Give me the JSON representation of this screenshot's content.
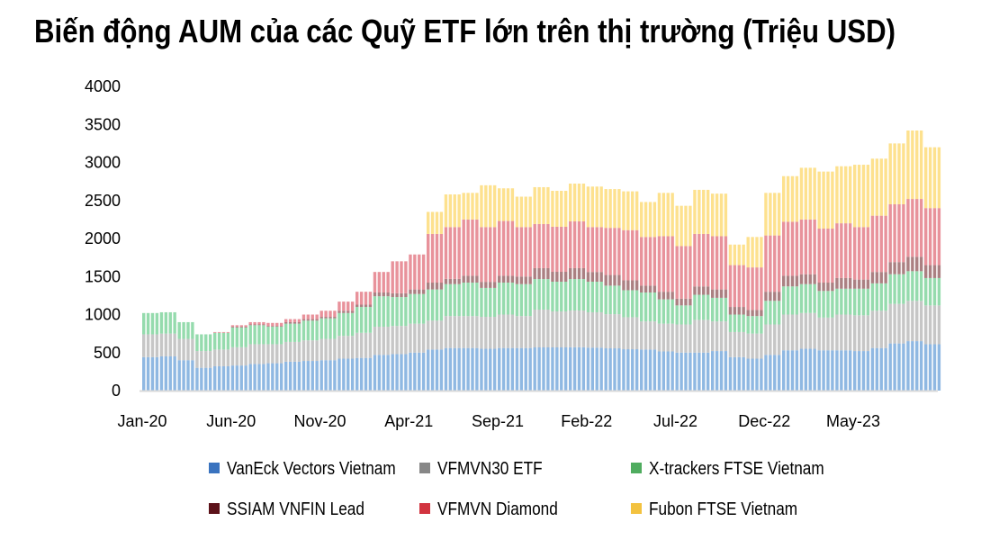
{
  "chart_data": {
    "type": "bar",
    "stacked": true,
    "title": "Biến động AUM của các Quỹ ETF lớn trên thị trường (Triệu USD)",
    "xlabel": "",
    "ylabel": "",
    "ylim": [
      0,
      4000
    ],
    "yticks": [
      "0",
      "500",
      "1000",
      "1500",
      "2000",
      "2500",
      "3000",
      "3500",
      "4000"
    ],
    "ytick_values": [
      0,
      500,
      1000,
      1500,
      2000,
      2500,
      3000,
      3500,
      4000
    ],
    "xtick_labels": [
      "Jan-20",
      "Jun-20",
      "Nov-20",
      "Apr-21",
      "Sep-21",
      "Feb-22",
      "Jul-22",
      "Dec-22",
      "May-23"
    ],
    "xtick_index": [
      0,
      5,
      10,
      15,
      20,
      25,
      30,
      35,
      40
    ],
    "categories": [
      "Jan-20",
      "Feb-20",
      "Mar-20",
      "Apr-20",
      "May-20",
      "Jun-20",
      "Jul-20",
      "Aug-20",
      "Sep-20",
      "Oct-20",
      "Nov-20",
      "Dec-20",
      "Jan-21",
      "Feb-21",
      "Mar-21",
      "Apr-21",
      "May-21",
      "Jun-21",
      "Jul-21",
      "Aug-21",
      "Sep-21",
      "Oct-21",
      "Nov-21",
      "Dec-21",
      "Jan-22",
      "Feb-22",
      "Mar-22",
      "Apr-22",
      "May-22",
      "Jun-22",
      "Jul-22",
      "Aug-22",
      "Sep-22",
      "Oct-22",
      "Nov-22",
      "Dec-22",
      "Jan-23",
      "Feb-23",
      "Mar-23",
      "Apr-23",
      "May-23",
      "Jun-23",
      "Jul-23",
      "Aug-23",
      "Sep-23"
    ],
    "legend_position": "bottom",
    "grid": false,
    "series": [
      {
        "name": "VanEck Vectors Vietnam",
        "color": "#3a73bf",
        "fill": "#8fb8e2",
        "values": [
          440,
          450,
          400,
          300,
          320,
          330,
          350,
          360,
          380,
          390,
          400,
          420,
          430,
          470,
          480,
          500,
          540,
          560,
          560,
          550,
          560,
          560,
          568,
          568,
          570,
          565,
          556,
          544,
          540,
          515,
          500,
          500,
          520,
          440,
          420,
          470,
          530,
          550,
          530,
          530,
          520,
          560,
          620,
          650,
          610
        ]
      },
      {
        "name": "VFMVN30 ETF",
        "color": "#878787",
        "fill": "#c6c6c6",
        "values": [
          300,
          300,
          280,
          220,
          220,
          240,
          260,
          250,
          260,
          270,
          280,
          300,
          330,
          370,
          370,
          380,
          380,
          420,
          420,
          420,
          440,
          420,
          497,
          473,
          483,
          465,
          449,
          421,
          370,
          365,
          370,
          430,
          390,
          330,
          330,
          400,
          470,
          470,
          430,
          470,
          470,
          490,
          520,
          530,
          510
        ]
      },
      {
        "name": "X-trackers FTSE Vietnam",
        "color": "#4fac5f",
        "fill": "#95dbad",
        "values": [
          280,
          280,
          220,
          220,
          220,
          260,
          250,
          230,
          240,
          260,
          270,
          300,
          340,
          400,
          380,
          390,
          410,
          420,
          440,
          380,
          420,
          420,
          402,
          391,
          414,
          402,
          375,
          355,
          380,
          320,
          250,
          330,
          310,
          230,
          230,
          310,
          370,
          380,
          350,
          340,
          350,
          360,
          390,
          390,
          360
        ]
      },
      {
        "name": "SSIAM VNFIN Lead",
        "color": "#5c1219",
        "fill": "#ab8082",
        "values": [
          0,
          0,
          0,
          0,
          0,
          10,
          10,
          10,
          20,
          20,
          20,
          30,
          30,
          50,
          50,
          60,
          90,
          70,
          90,
          80,
          90,
          100,
          143,
          130,
          143,
          128,
          140,
          130,
          90,
          100,
          90,
          110,
          110,
          100,
          80,
          120,
          140,
          130,
          110,
          140,
          120,
          150,
          160,
          190,
          170
        ]
      },
      {
        "name": "VFMVN Diamond",
        "color": "#d2343f",
        "fill": "#e8929b",
        "values": [
          0,
          0,
          0,
          0,
          10,
          20,
          30,
          40,
          40,
          60,
          80,
          120,
          170,
          270,
          420,
          460,
          640,
          680,
          740,
          720,
          720,
          650,
          580,
          592,
          615,
          590,
          620,
          660,
          640,
          730,
          690,
          690,
          700,
          550,
          560,
          740,
          710,
          720,
          710,
          720,
          690,
          740,
          760,
          760,
          750
        ]
      },
      {
        "name": "Fubon FTSE Vietnam",
        "color": "#f3c23f",
        "fill": "#fde18e",
        "values": [
          0,
          0,
          0,
          0,
          0,
          0,
          0,
          0,
          0,
          0,
          0,
          0,
          0,
          0,
          0,
          0,
          290,
          430,
          350,
          550,
          430,
          400,
          485,
          473,
          497,
          533,
          510,
          510,
          460,
          570,
          530,
          580,
          560,
          270,
          400,
          560,
          600,
          680,
          750,
          750,
          820,
          750,
          800,
          900,
          800
        ]
      }
    ]
  }
}
